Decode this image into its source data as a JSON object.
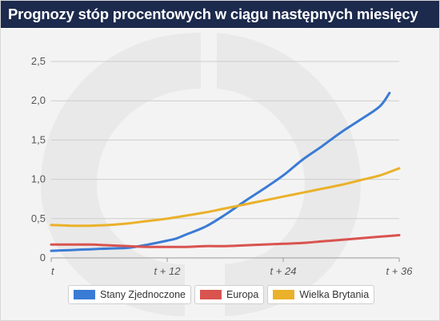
{
  "title": "Prognozy stóp procentowych w ciągu następnych miesięcy",
  "colors": {
    "title_bar": "#1c2a4d",
    "background": "#f3f3f3",
    "watermark": "#e9e9e9"
  },
  "chart_data": {
    "type": "line",
    "title": "Prognozy stóp procentowych w ciągu następnych miesięcy",
    "xlabel": "",
    "ylabel": "",
    "xlim": [
      0,
      36
    ],
    "ylim": [
      0,
      2.5
    ],
    "x_ticks": [
      {
        "value": 0,
        "label": "t"
      },
      {
        "value": 12,
        "label": "t + 12"
      },
      {
        "value": 24,
        "label": "t + 24"
      },
      {
        "value": 36,
        "label": "t + 36"
      }
    ],
    "y_ticks": [
      {
        "value": 0,
        "label": "0"
      },
      {
        "value": 0.5,
        "label": "0,5"
      },
      {
        "value": 1.0,
        "label": "1,0"
      },
      {
        "value": 1.5,
        "label": "1,5"
      },
      {
        "value": 2.0,
        "label": "2,0"
      },
      {
        "value": 2.5,
        "label": "2,5"
      }
    ],
    "grid": true,
    "legend_position": "bottom",
    "series": [
      {
        "name": "Stany Zjednoczone",
        "color": "#3a7bd5",
        "x": [
          0,
          2,
          4,
          6,
          8,
          10,
          12,
          13,
          14,
          16,
          18,
          20,
          22,
          24,
          26,
          28,
          30,
          32,
          34,
          35
        ],
        "values": [
          0.09,
          0.1,
          0.11,
          0.12,
          0.13,
          0.17,
          0.22,
          0.25,
          0.3,
          0.4,
          0.55,
          0.72,
          0.88,
          1.05,
          1.25,
          1.42,
          1.6,
          1.76,
          1.93,
          2.1
        ]
      },
      {
        "name": "Europa",
        "color": "#d9534f",
        "x": [
          0,
          2,
          4,
          6,
          8,
          10,
          12,
          14,
          16,
          18,
          20,
          22,
          24,
          26,
          28,
          30,
          32,
          34,
          36
        ],
        "values": [
          0.17,
          0.17,
          0.17,
          0.16,
          0.15,
          0.14,
          0.14,
          0.14,
          0.15,
          0.15,
          0.16,
          0.17,
          0.18,
          0.19,
          0.21,
          0.23,
          0.25,
          0.27,
          0.29
        ]
      },
      {
        "name": "Wielka Brytania",
        "color": "#eab12a",
        "x": [
          0,
          2,
          4,
          6,
          8,
          10,
          12,
          14,
          16,
          18,
          20,
          22,
          24,
          26,
          28,
          30,
          32,
          34,
          36
        ],
        "values": [
          0.42,
          0.41,
          0.41,
          0.42,
          0.44,
          0.47,
          0.5,
          0.54,
          0.58,
          0.63,
          0.68,
          0.73,
          0.78,
          0.83,
          0.88,
          0.93,
          0.99,
          1.05,
          1.14
        ]
      }
    ]
  }
}
